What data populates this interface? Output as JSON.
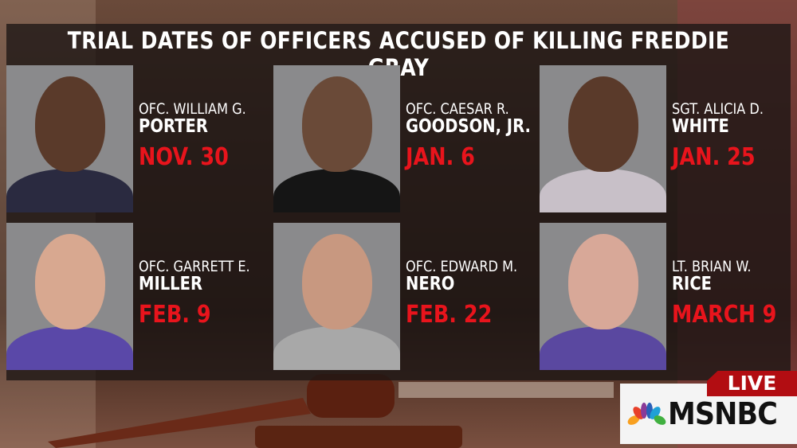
{
  "title": "TRIAL DATES OF OFFICERS ACCUSED OF KILLING FREDDIE GRAY",
  "officers": [
    {
      "line1": "OFC. WILLIAM G.",
      "line2": "PORTER",
      "date": "NOV. 30",
      "skin": "#5a3a2a",
      "shirt": "#2a2a40"
    },
    {
      "line1": "OFC. CAESAR R.",
      "line2": "GOODSON, JR.",
      "date": "JAN. 6",
      "skin": "#6a4a38",
      "shirt": "#151515"
    },
    {
      "line1": "SGT. ALICIA D.",
      "line2": "WHITE",
      "date": "JAN. 25",
      "skin": "#5a3a2a",
      "shirt": "#c8c0c8"
    },
    {
      "line1": "OFC. GARRETT E.",
      "line2": "MILLER",
      "date": "FEB. 9",
      "skin": "#d8a890",
      "shirt": "#5a48a8"
    },
    {
      "line1": "OFC. EDWARD M.",
      "line2": "NERO",
      "date": "FEB. 22",
      "skin": "#c89880",
      "shirt": "#a8a8a8"
    },
    {
      "line1": "LT. BRIAN W.",
      "line2": "RICE",
      "date": "MARCH 9",
      "skin": "#d8a898",
      "shirt": "#5a48a0"
    }
  ],
  "live_label": "LIVE",
  "network": "MSNBC",
  "colors": {
    "date_red": "#e8141c",
    "live_red": "#b20d12"
  }
}
